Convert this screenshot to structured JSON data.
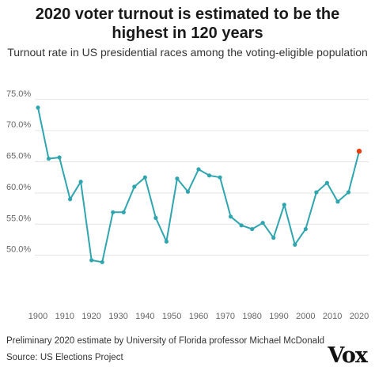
{
  "header": {
    "title_line1": "2020 voter turnout is estimated to be the",
    "title_line2": "highest in 120 years",
    "subtitle": "Turnout rate in US presidential races among the voting-eligible population"
  },
  "footer": {
    "note": "Preliminary 2020 estimate by University of Florida professor Michael McDonald",
    "source": "Source: US Elections Project",
    "logo": "Vox"
  },
  "chart_data": {
    "type": "line",
    "title": "2020 voter turnout is estimated to be the highest in 120 years",
    "subtitle": "Turnout rate in US presidential races among the voting-eligible population",
    "xlabel": "",
    "ylabel": "",
    "x": [
      1900,
      1904,
      1908,
      1912,
      1916,
      1920,
      1924,
      1928,
      1932,
      1936,
      1940,
      1944,
      1948,
      1952,
      1956,
      1960,
      1964,
      1968,
      1972,
      1976,
      1980,
      1984,
      1988,
      1992,
      1996,
      2000,
      2004,
      2008,
      2012,
      2016,
      2020
    ],
    "series": [
      {
        "values": [
          73.7,
          65.5,
          65.7,
          59.0,
          61.8,
          49.2,
          48.9,
          56.9,
          56.9,
          61.0,
          62.5,
          56.0,
          52.2,
          62.3,
          60.2,
          63.8,
          62.8,
          62.5,
          56.2,
          54.8,
          54.2,
          55.2,
          52.8,
          58.1,
          51.7,
          54.2,
          60.1,
          61.6,
          58.6,
          60.1,
          66.7
        ]
      }
    ],
    "highlight": {
      "x": 2020,
      "y": 66.7,
      "color": "#e8400c"
    },
    "line_color": "#2fa5b0",
    "gridline_color": "#e3e3e3",
    "ylim": [
      45,
      77
    ],
    "xlim": [
      1900,
      2020
    ],
    "yticks": [
      50,
      55,
      60,
      65,
      70,
      75
    ],
    "ytick_labels": [
      "50.0%",
      "55.0%",
      "60.0%",
      "65.0%",
      "70.0%",
      "75.0%"
    ],
    "xticks": [
      1900,
      1910,
      1920,
      1930,
      1940,
      1950,
      1960,
      1970,
      1980,
      1990,
      2000,
      2010,
      2020
    ],
    "xtick_labels": [
      "1900",
      "1910",
      "1920",
      "1930",
      "1940",
      "1950",
      "1960",
      "1970",
      "1980",
      "1990",
      "2000",
      "2010",
      "2020"
    ],
    "grid": true,
    "legend": "none"
  }
}
